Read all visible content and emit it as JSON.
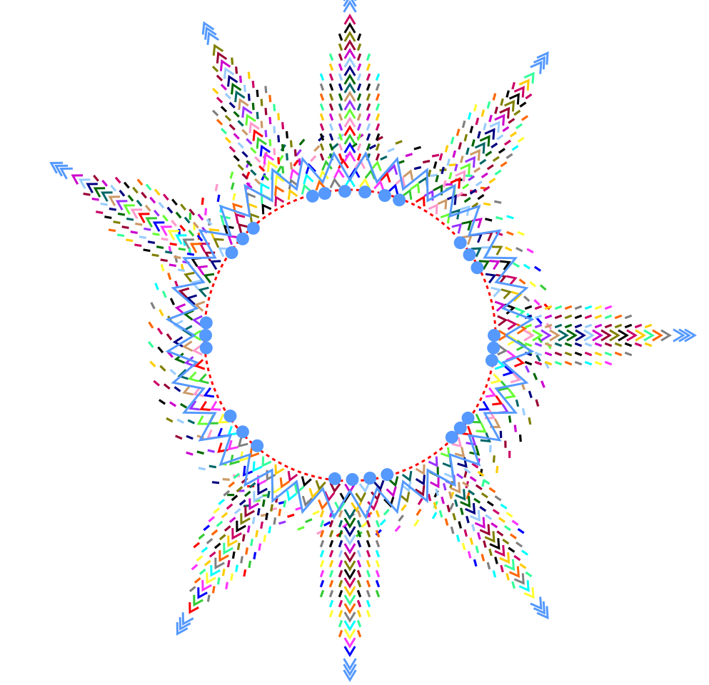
{
  "figure": {
    "description_text": "",
    "center_fill": "#ffffff",
    "ray_count": 8,
    "ray_bearings_deg": [
      -60,
      -25,
      0,
      35,
      90,
      145,
      180,
      210
    ],
    "palette": [
      "#ff6600",
      "#808080",
      "#00ffff",
      "#ffff33",
      "#ff33ff",
      "#0000ff",
      "#33cc33",
      "#ff0000",
      "#ff99cc",
      "#66ff33",
      "#9933ff",
      "#cc9966",
      "#006666",
      "#006600",
      "#000080",
      "#99ccff",
      "#cc00cc",
      "#990033",
      "#808000",
      "#000000",
      "#cc0066",
      "#ffcc00",
      "#33ff99"
    ],
    "accent": "#5599ff",
    "ring_markers": {
      "count": 28,
      "color": "#5599ff",
      "shape": "dot"
    },
    "ray_tip_markers": {
      "shape": "double-chevron",
      "color": "#5599ff"
    },
    "ring_bands": [
      "chevrons",
      "chevrons",
      "chevrons",
      "dashes",
      "dashes",
      "dashes"
    ]
  }
}
